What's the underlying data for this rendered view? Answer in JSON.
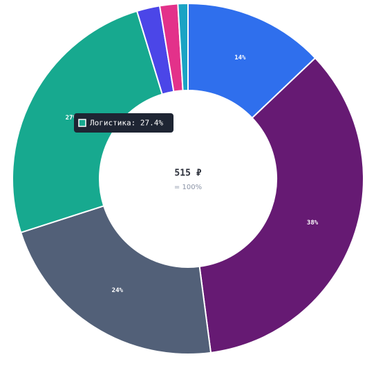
{
  "chart_data": {
    "type": "donut",
    "values": [
      14,
      38,
      24,
      27.4,
      2.3,
      1.8,
      1
    ],
    "value_labels": [
      "14%",
      "38%",
      "24%",
      "27%",
      null,
      null,
      null
    ],
    "colors": [
      "#2f6fed",
      "#661a73",
      "#526078",
      "#17a98f",
      "#4b46e8",
      "#e3318a",
      "#1aa3c4"
    ],
    "center_label": "515 ₽",
    "center_sublabel": "= 100%",
    "tooltip": "Логистика: 27.4%",
    "tooltip_index": 3
  }
}
